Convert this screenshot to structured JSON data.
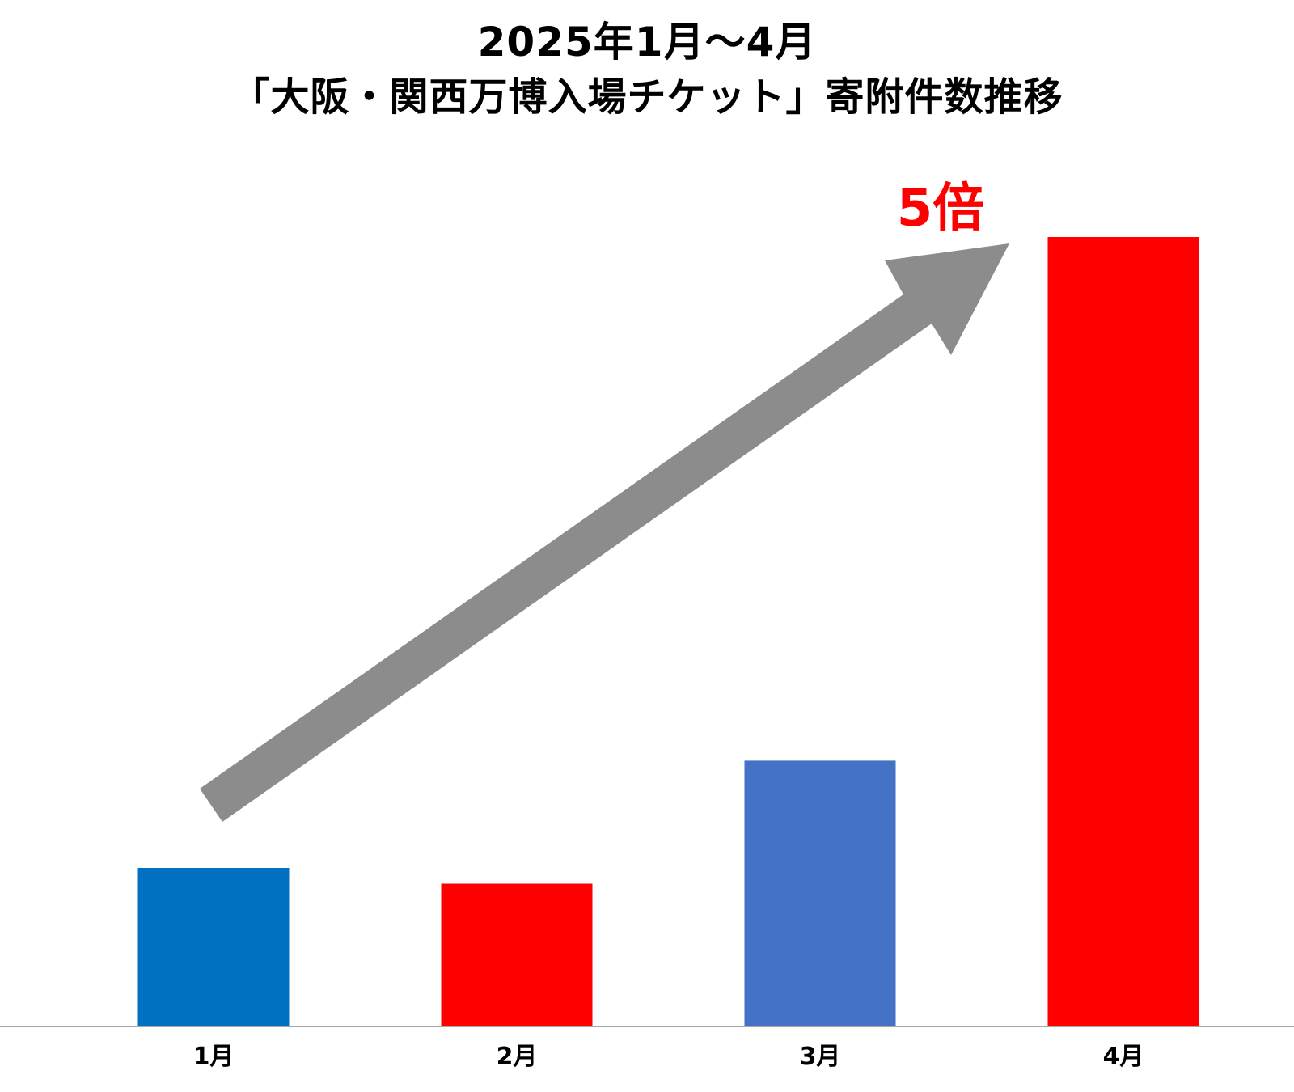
{
  "chart_data": {
    "type": "bar",
    "title": "2025年1月～4月",
    "subtitle": "「大阪・関西万博入場チケット」寄附件数推移",
    "categories": [
      "1月",
      "2月",
      "3月",
      "4月"
    ],
    "values": [
      1.0,
      0.9,
      1.68,
      5.0
    ],
    "bar_colors": [
      "#0070C0",
      "#FF0000",
      "#4472C4",
      "#FF0000"
    ],
    "ylim": [
      0,
      5.0
    ],
    "grid": false,
    "legend": "none",
    "annotation": {
      "label": "5倍",
      "color": "#FF0000",
      "arrow_color": "#8C8C8C"
    }
  }
}
